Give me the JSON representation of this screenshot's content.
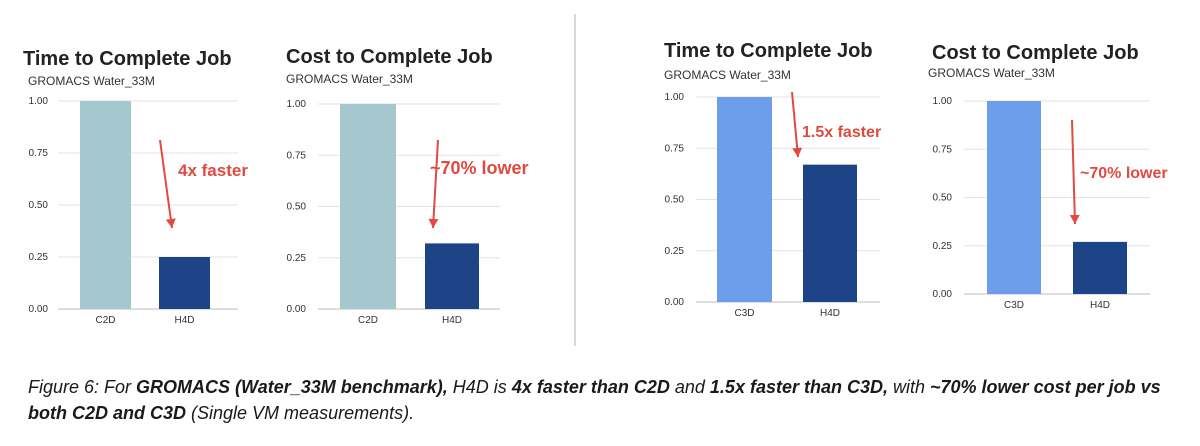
{
  "chart_data": [
    {
      "type": "bar",
      "title": "Time to Complete Job",
      "subtitle": "GROMACS Water_33M",
      "categories": [
        "C2D",
        "H4D"
      ],
      "values": [
        1.0,
        0.25
      ],
      "yticks": [
        "1.00",
        "0.75",
        "0.50",
        "0.25",
        "0.00"
      ],
      "ylim": [
        0,
        1
      ],
      "colors": [
        "#a5c8cf",
        "#1c4486"
      ],
      "annotation": "4x faster",
      "grid": true
    },
    {
      "type": "bar",
      "title": "Cost to Complete Job",
      "subtitle": "GROMACS Water_33M",
      "categories": [
        "C2D",
        "H4D"
      ],
      "values": [
        1.0,
        0.32
      ],
      "yticks": [
        "1.00",
        "0.75",
        "0.50",
        "0.25",
        "0.00"
      ],
      "ylim": [
        0,
        1
      ],
      "colors": [
        "#a5c8cf",
        "#1c4486"
      ],
      "annotation": "~70% lower",
      "grid": true
    },
    {
      "type": "bar",
      "title": "Time to Complete Job",
      "subtitle": "GROMACS Water_33M",
      "categories": [
        "C3D",
        "H4D"
      ],
      "values": [
        1.0,
        0.67
      ],
      "yticks": [
        "1.00",
        "0.75",
        "0.50",
        "0.25",
        "0.00"
      ],
      "ylim": [
        0,
        1
      ],
      "colors": [
        "#6d9eeb",
        "#1c4486"
      ],
      "annotation": "1.5x faster",
      "grid": true
    },
    {
      "type": "bar",
      "title": "Cost to Complete Job",
      "subtitle": "GROMACS Water_33M",
      "categories": [
        "C3D",
        "H4D"
      ],
      "values": [
        1.0,
        0.27
      ],
      "yticks": [
        "1.00",
        "0.75",
        "0.50",
        "0.25",
        "0.00"
      ],
      "ylim": [
        0,
        1
      ],
      "colors": [
        "#6d9eeb",
        "#1c4486"
      ],
      "annotation": "~70% lower",
      "grid": true
    }
  ],
  "caption": {
    "p1": "Figure 6: For ",
    "p2": "GROMACS (Water_33M benchmark),",
    "p3": " H4D is ",
    "p4": "4x faster than C2D",
    "p5": " and ",
    "p6": "1.5x faster than C3D,",
    "p7": " with ",
    "p8": "~70% lower cost per job vs both C2D and C3D",
    "p9": " (Single VM measurements)."
  },
  "annotation_color": "#e04a3f"
}
